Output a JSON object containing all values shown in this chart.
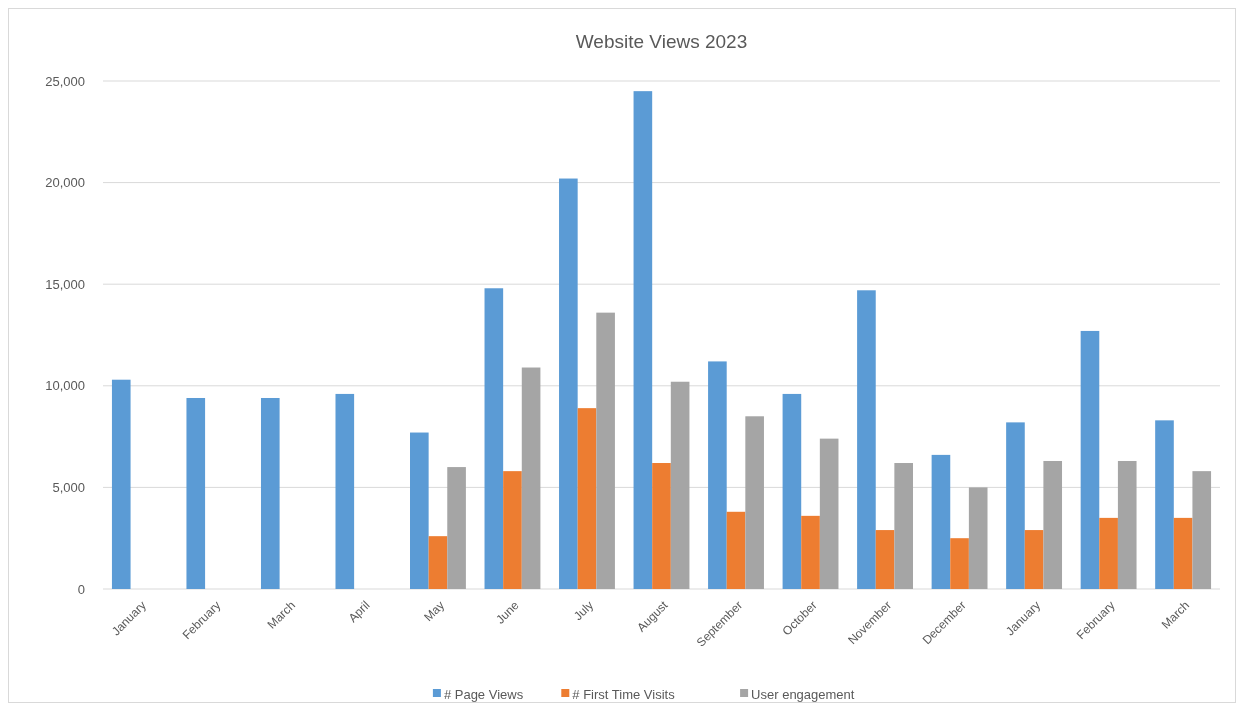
{
  "chart_data": {
    "type": "bar",
    "title": "Website Views 2023",
    "categories": [
      "January",
      "February",
      "March",
      "April",
      "May",
      "June",
      "July",
      "August",
      "September",
      "October",
      "November",
      "December",
      "January",
      "February",
      "March"
    ],
    "series": [
      {
        "name": "# Page Views",
        "color": "#5b9bd5",
        "values": [
          10300,
          9400,
          9400,
          9600,
          7700,
          14800,
          20200,
          24500,
          11200,
          9600,
          14700,
          6600,
          8200,
          12700,
          8300
        ]
      },
      {
        "name": "# First Time Visits",
        "color": "#ed7d31",
        "values": [
          null,
          null,
          null,
          null,
          2600,
          5800,
          8900,
          6200,
          3800,
          3600,
          2900,
          2500,
          2900,
          3500,
          3500
        ]
      },
      {
        "name": "User engagement",
        "color": "#a5a5a5",
        "values": [
          null,
          null,
          null,
          null,
          6000,
          10900,
          13600,
          10200,
          8500,
          7400,
          6200,
          5000,
          6300,
          6300,
          5800
        ]
      }
    ],
    "ylim": [
      0,
      25000
    ],
    "yticks": [
      {
        "value": 0,
        "label": "0"
      },
      {
        "value": 5000,
        "label": "5,000"
      },
      {
        "value": 10000,
        "label": "10,000"
      },
      {
        "value": 15000,
        "label": "15,000"
      },
      {
        "value": 20000,
        "label": "20,000"
      },
      {
        "value": 25000,
        "label": "25,000"
      }
    ],
    "grid": "y",
    "legend": "bottom"
  }
}
